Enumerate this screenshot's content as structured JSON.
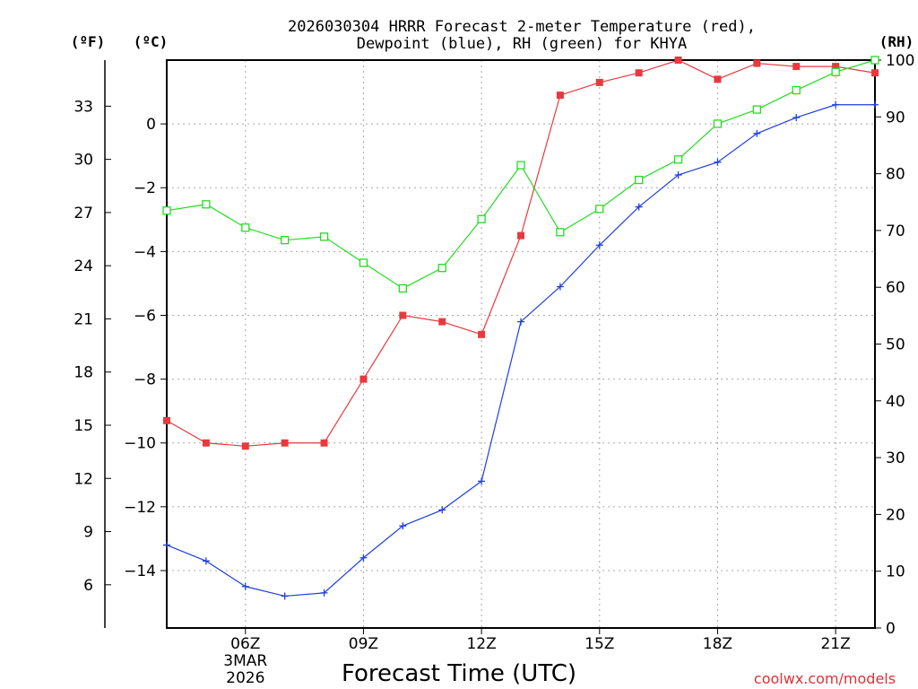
{
  "chart_data": {
    "type": "line",
    "title_line1": "2026030304 HRRR Forecast 2-meter Temperature (red),",
    "title_line2": "Dewpoint (blue), RH (green) for KHYA",
    "unit_f": "(ºF)",
    "unit_c": "(ºC)",
    "unit_rh": "(RH)",
    "xlabel": "Forecast Time (UTC)",
    "credit": "coolwx.com/models",
    "x_hours": [
      4,
      5,
      6,
      7,
      8,
      9,
      10,
      11,
      12,
      13,
      14,
      15,
      16,
      17,
      18,
      19,
      20,
      21,
      22
    ],
    "x_ticks": [
      {
        "hour": 6,
        "label": "06Z",
        "date1": "3MAR",
        "date2": "2026"
      },
      {
        "hour": 9,
        "label": "09Z"
      },
      {
        "hour": 12,
        "label": "12Z"
      },
      {
        "hour": 15,
        "label": "15Z"
      },
      {
        "hour": 18,
        "label": "18Z"
      },
      {
        "hour": 21,
        "label": "21Z"
      }
    ],
    "xlim": [
      4,
      22
    ],
    "celsius_axis": {
      "ylim": [
        -15.8,
        2
      ],
      "ticks": [
        0,
        -2,
        -4,
        -6,
        -8,
        -10,
        -12,
        -14
      ]
    },
    "fahrenheit_ticks": [
      33,
      30,
      27,
      24,
      21,
      18,
      15,
      12,
      9,
      6
    ],
    "rh_axis": {
      "ylim": [
        0,
        100
      ],
      "ticks": [
        100,
        90,
        80,
        70,
        60,
        50,
        40,
        30,
        20,
        10,
        0
      ]
    },
    "series": [
      {
        "name": "2-meter Temperature",
        "units": "C",
        "color": "#e8393f",
        "marker": "filled-square",
        "values": [
          -9.3,
          -10.0,
          -10.1,
          -10.0,
          -10.0,
          -8.0,
          -6.0,
          -6.2,
          -6.6,
          -3.5,
          0.9,
          1.3,
          1.6,
          2.0,
          1.4,
          1.9,
          1.8,
          1.8,
          1.6
        ]
      },
      {
        "name": "Dewpoint",
        "units": "C",
        "color": "#1f3fe0",
        "marker": "plus",
        "values": [
          -13.2,
          -13.7,
          -14.5,
          -14.8,
          -14.7,
          -13.6,
          -12.6,
          -12.1,
          -11.2,
          -6.2,
          -5.1,
          -3.8,
          -2.6,
          -1.6,
          -1.2,
          -0.3,
          0.2,
          0.6,
          0.6
        ]
      },
      {
        "name": "RH",
        "units": "%",
        "color": "#22dd22",
        "marker": "open-square",
        "values": [
          73.5,
          74.6,
          70.5,
          68.3,
          68.9,
          64.3,
          59.8,
          63.4,
          72.0,
          81.5,
          69.7,
          73.8,
          78.9,
          82.5,
          88.8,
          91.3,
          94.7,
          97.9,
          100
        ]
      }
    ]
  }
}
